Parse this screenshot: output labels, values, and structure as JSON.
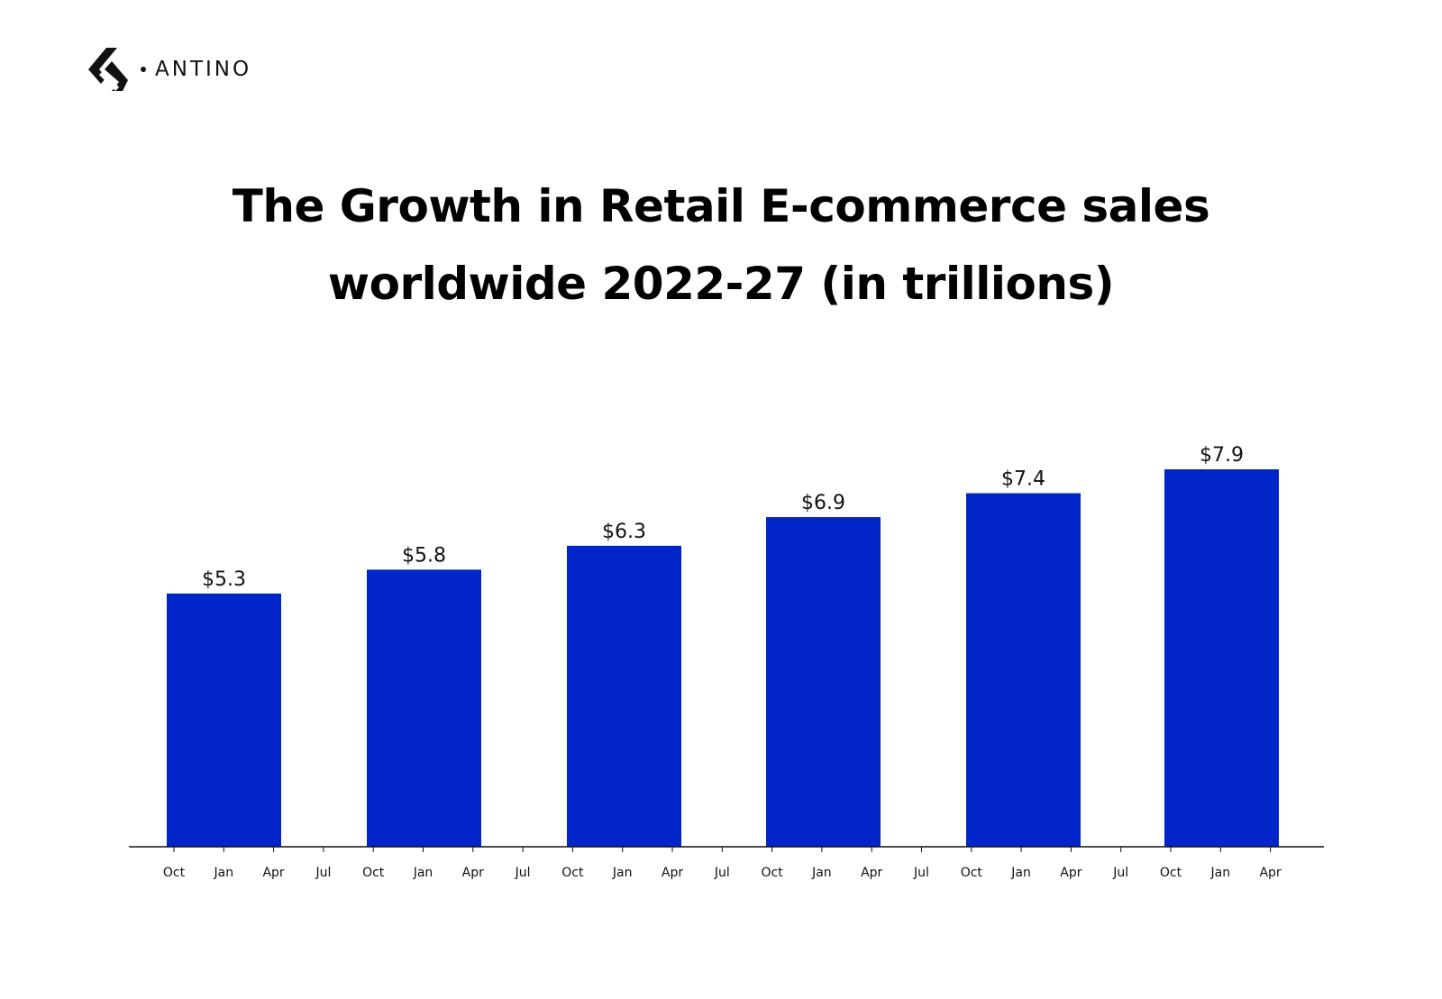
{
  "brand": {
    "name": "ANTINO",
    "logo_icon": "antino-chevron-logo"
  },
  "chart_data": {
    "type": "bar",
    "title_lines": [
      "The Growth in Retail E-commerce sales",
      "worldwide 2022-27 (in trillions)"
    ],
    "values": [
      5.3,
      5.8,
      6.3,
      6.9,
      7.4,
      7.9
    ],
    "value_labels": [
      "$5.3",
      "$5.8",
      "$6.3",
      "$6.9",
      "$7.4",
      "$7.9"
    ],
    "x_ticks": [
      "Oct",
      "Jan",
      "Apr",
      "Jul",
      "Oct",
      "Jan",
      "Apr",
      "Jul",
      "Oct",
      "Jan",
      "Apr",
      "Jul",
      "Oct",
      "Jan",
      "Apr",
      "Jul",
      "Oct",
      "Jan",
      "Apr",
      "Jul",
      "Oct",
      "Jan",
      "Apr"
    ],
    "bar_color": "#0026c9",
    "ylim": [
      0,
      7.9
    ],
    "grid": false,
    "legend": "none"
  }
}
